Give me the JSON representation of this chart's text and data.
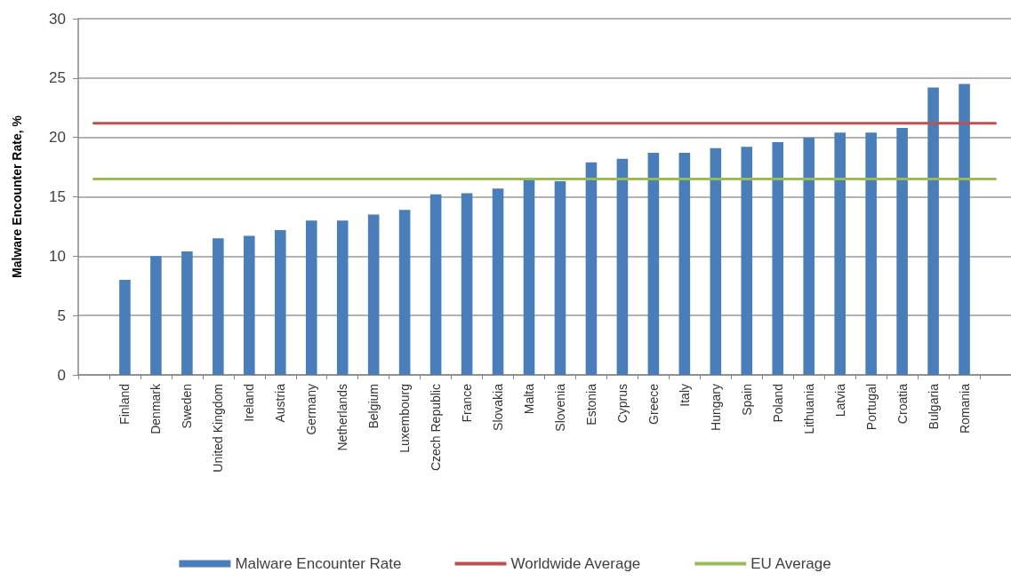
{
  "chart_data": {
    "type": "bar",
    "ylabel": "Malware Encounter Rate, %",
    "categories": [
      null,
      "Finland",
      "Denmark",
      "Sweden",
      "United Kingdom",
      "Ireland",
      "Austria",
      "Germany",
      "Netherlands",
      "Belgium",
      "Luxembourg",
      "Czech Republic",
      "France",
      "Slovakia",
      "Malta",
      "Slovenia",
      "Estonia",
      "Cyprus",
      "Greece",
      "Italy",
      "Hungary",
      "Spain",
      "Poland",
      "Lithuania",
      "Latvia",
      "Portugal",
      "Croatia",
      "Bulgaria",
      "Romania",
      null
    ],
    "series": [
      {
        "name": "Malware Encounter Rate",
        "color": "#4a7ebb",
        "values": [
          null,
          8.0,
          10.0,
          10.4,
          11.5,
          11.7,
          12.2,
          13.0,
          13.0,
          13.5,
          13.9,
          15.2,
          15.3,
          15.7,
          16.4,
          16.3,
          17.9,
          18.2,
          18.7,
          18.7,
          19.1,
          19.2,
          19.6,
          20.0,
          20.4,
          20.4,
          20.8,
          24.2,
          24.5,
          null
        ]
      },
      {
        "name": "Worldwide Average",
        "type": "line",
        "color": "#c0504d",
        "values": [
          21.2,
          21.2,
          21.2,
          21.2,
          21.2,
          21.2,
          21.2,
          21.2,
          21.2,
          21.2,
          21.2,
          21.2,
          21.2,
          21.2,
          21.2,
          21.2,
          21.2,
          21.2,
          21.2,
          21.2,
          21.2,
          21.2,
          21.2,
          21.2,
          21.2,
          21.2,
          21.2,
          21.2,
          21.2,
          21.2
        ]
      },
      {
        "name": "EU Average",
        "type": "line",
        "color": "#9bbb59",
        "values": [
          16.5,
          16.5,
          16.5,
          16.5,
          16.5,
          16.5,
          16.5,
          16.5,
          16.5,
          16.5,
          16.5,
          16.5,
          16.5,
          16.5,
          16.5,
          16.5,
          16.5,
          16.5,
          16.5,
          16.5,
          16.5,
          16.5,
          16.5,
          16.5,
          16.5,
          16.5,
          16.5,
          16.5,
          16.5,
          16.5
        ]
      }
    ],
    "ylim": [
      0,
      30
    ],
    "yticks": [
      0,
      5,
      10,
      15,
      20,
      25,
      30
    ],
    "grid": "y",
    "legend": "bottom",
    "marker": "none"
  }
}
